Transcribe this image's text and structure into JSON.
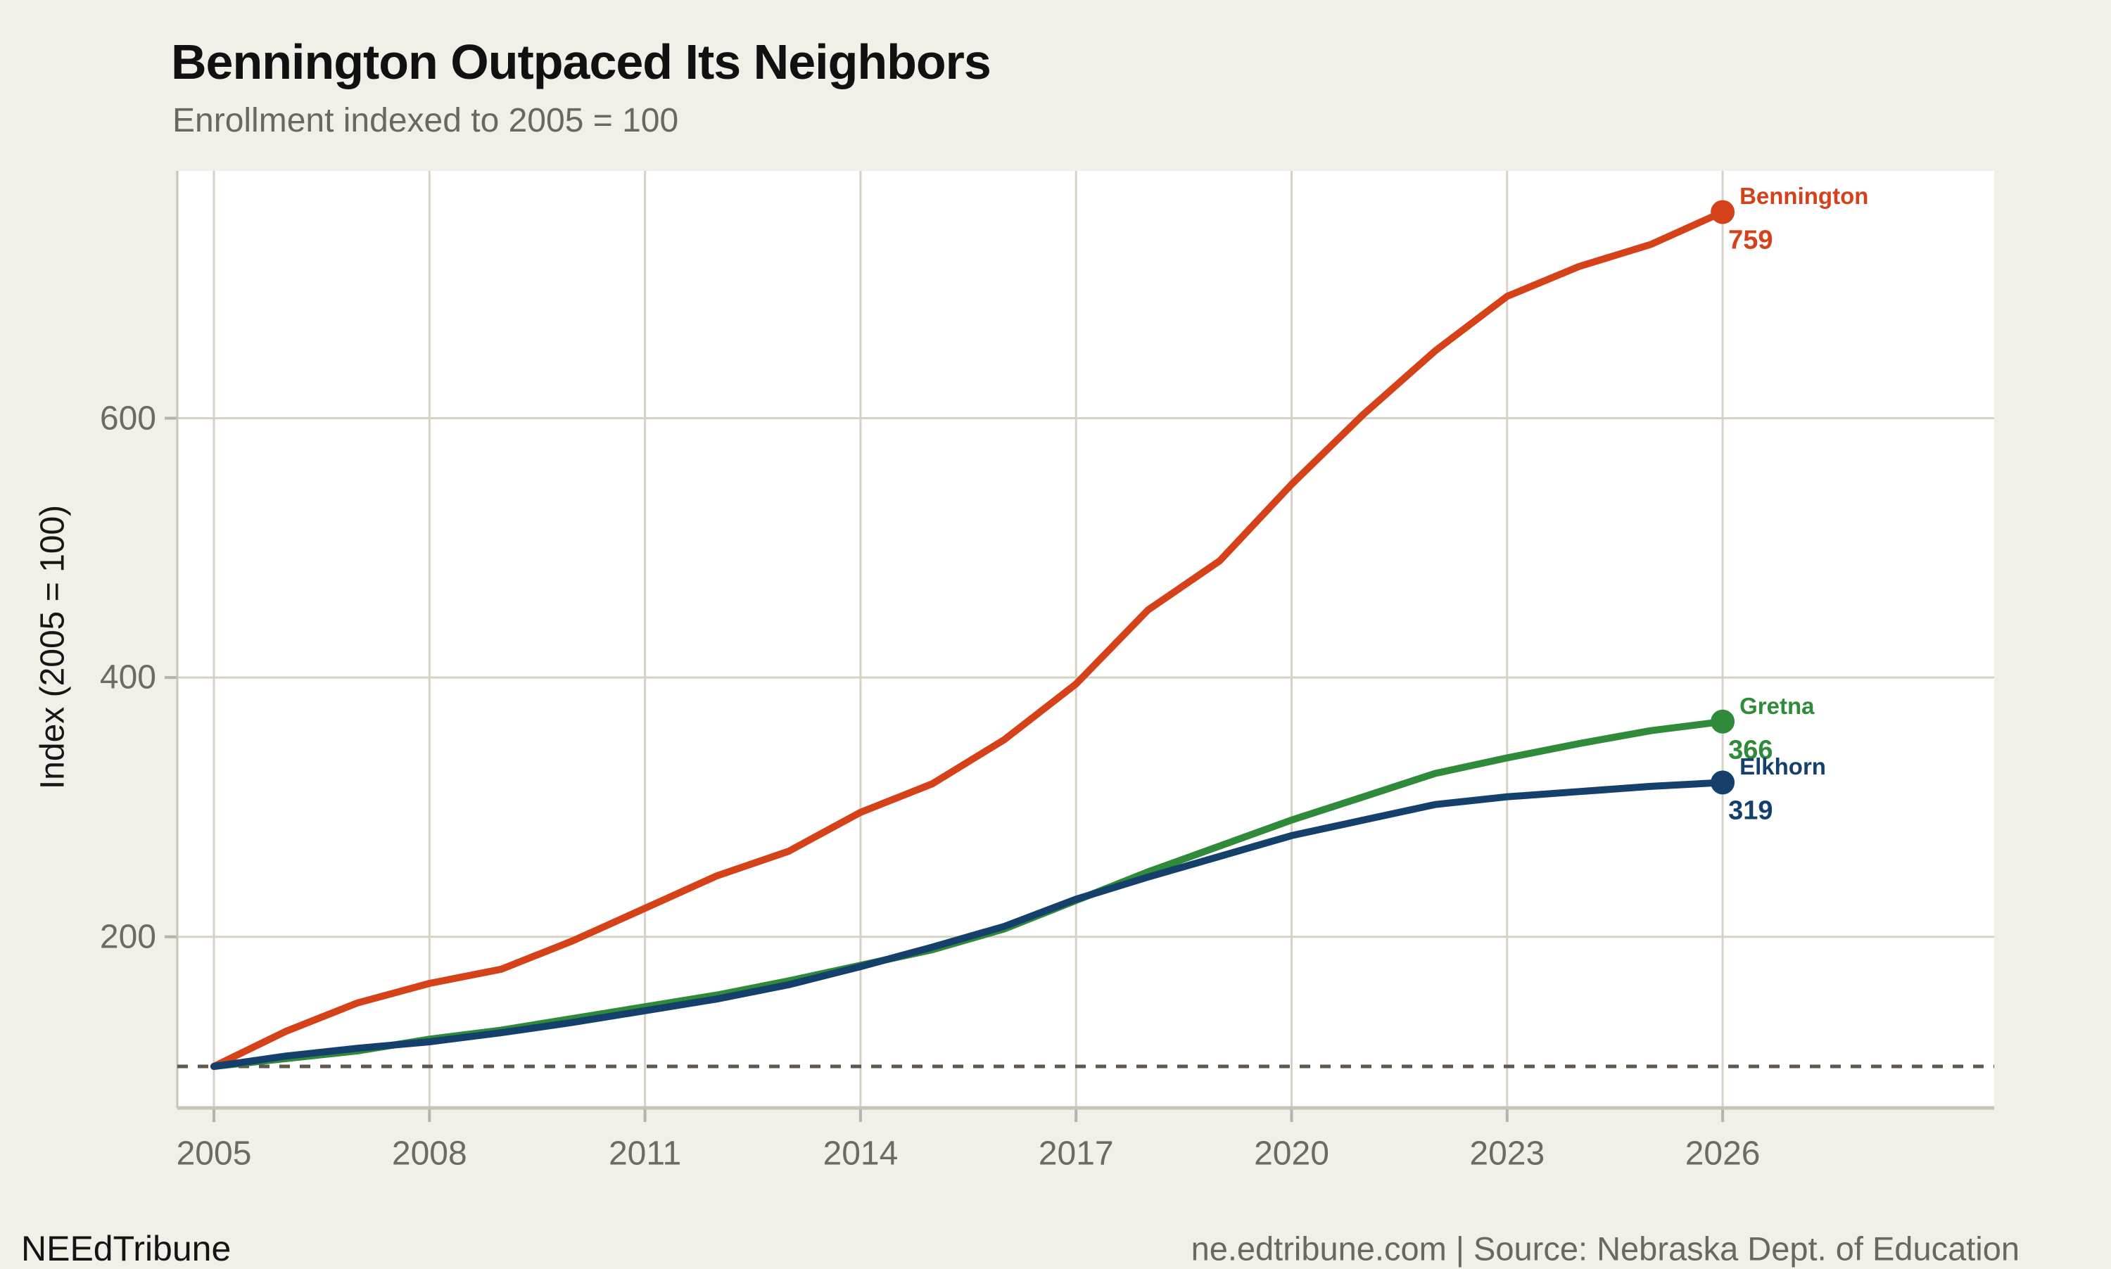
{
  "footer": {
    "brand": "NEEdTribune",
    "source": "ne.edtribune.com | Source: Nebraska Dept. of Education"
  },
  "chart_data": {
    "type": "line",
    "title": "Bennington Outpaced Its Neighbors",
    "subtitle": "Enrollment indexed to 2005 = 100",
    "xlabel": "",
    "ylabel": "Index (2005 = 100)",
    "x_ticks": [
      2005,
      2008,
      2011,
      2014,
      2017,
      2020,
      2023,
      2026
    ],
    "y_ticks": [
      200,
      400,
      600
    ],
    "xlim": [
      2004.5,
      2029.8
    ],
    "ylim": [
      68,
      790
    ],
    "grid": true,
    "legend": "end-of-line-labels",
    "baseline": {
      "value": 100,
      "style": "dashed"
    },
    "years": [
      2005,
      2006,
      2007,
      2008,
      2009,
      2010,
      2011,
      2012,
      2013,
      2014,
      2015,
      2016,
      2017,
      2018,
      2019,
      2020,
      2021,
      2022,
      2023,
      2024,
      2025,
      2026
    ],
    "series": [
      {
        "name": "Bennington",
        "color": "#d5421a",
        "end_value": 759,
        "values": [
          100,
          127,
          149,
          164,
          175,
          197,
          222,
          247,
          266,
          296,
          318,
          352,
          395,
          452,
          490,
          549,
          603,
          652,
          694,
          717,
          734,
          759
        ]
      },
      {
        "name": "Gretna",
        "color": "#2f8b39",
        "end_value": 366,
        "values": [
          100,
          106,
          112,
          121,
          128,
          137,
          146,
          155,
          166,
          178,
          190,
          206,
          228,
          250,
          270,
          290,
          308,
          326,
          338,
          349,
          359,
          366
        ]
      },
      {
        "name": "Elkhorn",
        "color": "#15406b",
        "end_value": 319,
        "values": [
          100,
          108,
          114,
          119,
          126,
          134,
          143,
          152,
          163,
          177,
          192,
          208,
          229,
          246,
          262,
          278,
          290,
          302,
          308,
          312,
          316,
          319
        ]
      }
    ]
  },
  "palette": {
    "background": "#f2efe8",
    "plot_background": "#ffffff",
    "gridline": "#d8d2c6",
    "axis_border": "#c9c3b7",
    "tick_mark": "#b9b3a7",
    "baseline_dash": "#5d574d",
    "tick_text": "#6e6961",
    "subtitle_text": "#6b665e",
    "title_text": "#111111"
  }
}
